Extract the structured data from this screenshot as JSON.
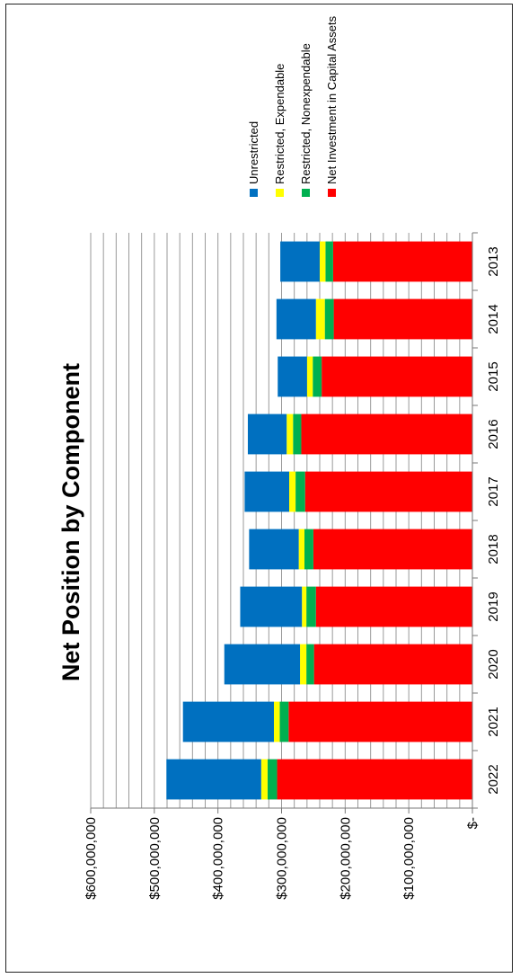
{
  "chart_data": {
    "type": "bar",
    "stacked": true,
    "orientation": "horizontal",
    "title": "Net Position by Component",
    "categories": [
      "2022",
      "2021",
      "2020",
      "2019",
      "2018",
      "2017",
      "2016",
      "2015",
      "2014",
      "2013"
    ],
    "series": [
      {
        "name": "Net Investment in Capital Assets",
        "color": "#ff0000",
        "values": [
          307000000,
          289000000,
          249000000,
          246000000,
          250000000,
          263000000,
          269000000,
          237000000,
          218000000,
          219000000
        ]
      },
      {
        "name": "Restricted, Nonexpendable",
        "color": "#00b050",
        "values": [
          15000000,
          14000000,
          12000000,
          15000000,
          14000000,
          15000000,
          13000000,
          14000000,
          14000000,
          12000000
        ]
      },
      {
        "name": "Restricted, Expendable",
        "color": "#ffff00",
        "values": [
          10000000,
          9000000,
          10000000,
          7000000,
          9000000,
          10000000,
          10000000,
          9000000,
          14000000,
          9000000
        ]
      },
      {
        "name": "Unrestricted",
        "color": "#0070c0",
        "values": [
          149000000,
          143000000,
          119000000,
          97000000,
          78000000,
          70000000,
          61000000,
          46000000,
          62000000,
          62000000
        ]
      }
    ],
    "value_axis": {
      "min": 0,
      "max": 600000000,
      "tick_labels": [
        "$-",
        "$100,000,000",
        "$200,000,000",
        "$300,000,000",
        "$400,000,000",
        "$500,000,000",
        "$600,000,000"
      ],
      "tick_values": [
        0,
        100000000,
        200000000,
        300000000,
        400000000,
        500000000,
        600000000
      ]
    },
    "minor_gridline_step": 20000000,
    "grid": true,
    "legend_position": "right",
    "legend_order": [
      "Unrestricted",
      "Restricted, Expendable",
      "Restricted, Nonexpendable",
      "Net Investment in Capital Assets"
    ]
  }
}
